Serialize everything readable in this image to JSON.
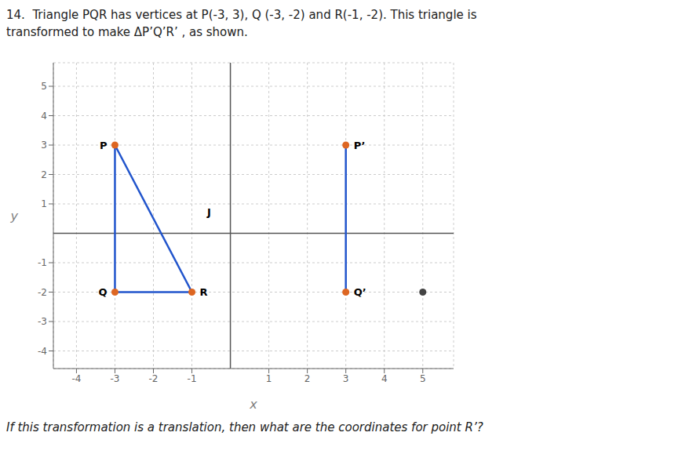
{
  "chart_data": {
    "type": "scatter",
    "title": "14.  Triangle PQR has vertices at P(-3, 3), Q (-3, -2) and R(-1, -2). This triangle is",
    "subtitle": "transformed to make ΔP’Q’R’ , as shown.",
    "x_label": "x",
    "y_label": "y",
    "xlim": [
      -4.6,
      5.8
    ],
    "ylim": [
      -4.6,
      5.8
    ],
    "xticks": [
      -4,
      -3,
      -2,
      -1,
      1,
      2,
      3,
      4,
      5
    ],
    "yticks": [
      -4,
      -3,
      -2,
      -1,
      1,
      2,
      3,
      4,
      5
    ],
    "grid": true,
    "series": [
      {
        "type": "line",
        "color": "#2255cc",
        "x": [
          -3,
          -3,
          -1,
          -3
        ],
        "values": [
          3,
          -2,
          -2,
          3
        ]
      },
      {
        "type": "line",
        "color": "#2255cc",
        "x": [
          3,
          3
        ],
        "values": [
          3,
          -2
        ]
      },
      {
        "type": "scatter",
        "color": "#dd6622",
        "x": [
          -3,
          -3,
          -1,
          3,
          3
        ],
        "values": [
          3,
          -2,
          -2,
          3,
          -2
        ]
      },
      {
        "type": "scatter",
        "color": "#444444",
        "x": [
          5
        ],
        "values": [
          -2
        ]
      }
    ],
    "annotations": [
      {
        "text": "P",
        "x": -3,
        "y": 3
      },
      {
        "text": "Q",
        "x": -3,
        "y": -2
      },
      {
        "text": "R",
        "x": -1,
        "y": -2
      },
      {
        "text": "P’",
        "x": 3,
        "y": 3
      },
      {
        "text": "Q’",
        "x": 3,
        "y": -2
      },
      {
        "text": "J",
        "x": -0.3,
        "y": 0.72
      },
      {
        "text": "If this transformation is a translation, then what are the coordinates for point R’?"
      }
    ]
  }
}
